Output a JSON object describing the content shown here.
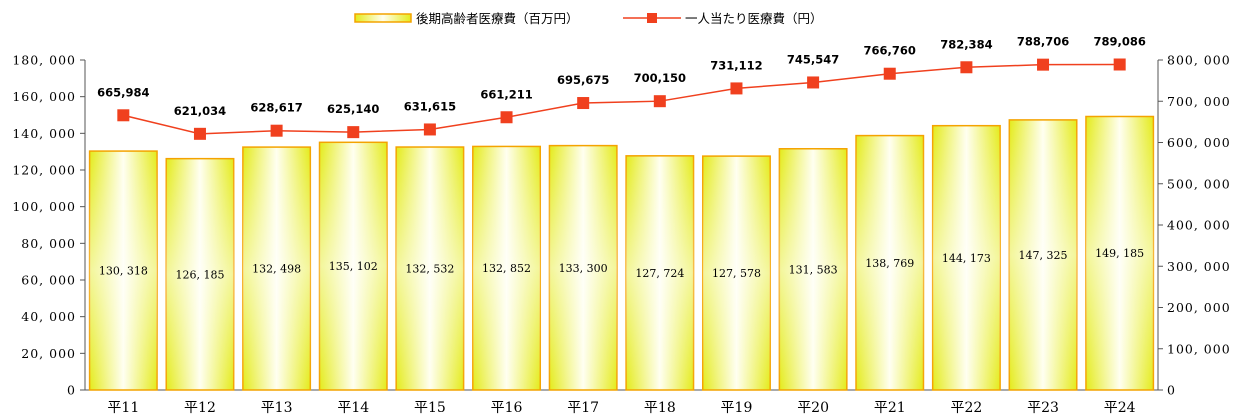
{
  "chart_data": {
    "type": "bar",
    "categories": [
      "平11",
      "平12",
      "平13",
      "平14",
      "平15",
      "平16",
      "平17",
      "平18",
      "平19",
      "平20",
      "平21",
      "平22",
      "平23",
      "平24"
    ],
    "series": [
      {
        "name": "後期高齢者医療費（百万円）",
        "type": "bar",
        "axis": "left",
        "values": [
          130318,
          126185,
          132498,
          135102,
          132532,
          132852,
          133300,
          127724,
          127578,
          131583,
          138769,
          144173,
          147325,
          149185
        ],
        "labels": [
          "130, 318",
          "126, 185",
          "132, 498",
          "135, 102",
          "132, 532",
          "132, 852",
          "133, 300",
          "127, 724",
          "127, 578",
          "131, 583",
          "138, 769",
          "144, 173",
          "147, 325",
          "149, 185"
        ]
      },
      {
        "name": "一人当たり医療費（円）",
        "type": "line",
        "axis": "right",
        "values": [
          665984,
          621034,
          628617,
          625140,
          631615,
          661211,
          695675,
          700150,
          731112,
          745547,
          766760,
          782384,
          788706,
          789086
        ],
        "labels": [
          "665,984",
          "621,034",
          "628,617",
          "625,140",
          "631,615",
          "661,211",
          "695,675",
          "700,150",
          "731,112",
          "745,547",
          "766,760",
          "782,384",
          "788,706",
          "789,086"
        ]
      }
    ],
    "left_axis": {
      "range": [
        0,
        180000
      ],
      "ticks": [
        0,
        20000,
        40000,
        60000,
        80000,
        100000,
        120000,
        140000,
        160000,
        180000
      ],
      "tick_labels": [
        "0",
        "20, 000",
        "40, 000",
        "60, 000",
        "80, 000",
        "100, 000",
        "120, 000",
        "140, 000",
        "160, 000",
        "180, 000"
      ]
    },
    "right_axis": {
      "range": [
        0,
        800000
      ],
      "ticks": [
        0,
        100000,
        200000,
        300000,
        400000,
        500000,
        600000,
        700000,
        800000
      ],
      "tick_labels": [
        "0",
        "100, 000",
        "200, 000",
        "300, 000",
        "400, 000",
        "500, 000",
        "600, 000",
        "700, 000",
        "800, 000"
      ]
    },
    "legend": {
      "position": "top",
      "bar_label": "後期高齢者医療費（百万円）",
      "line_label": "一人当たり医療費（円）"
    },
    "grid": false
  },
  "colors": {
    "bar_border": "#F4A300",
    "bar_fill_light": "#FFFFF0",
    "bar_fill_mid": "#F6F99A",
    "bar_fill_dark": "#E4EB1A",
    "line": "#F0401E",
    "axis": "#555555"
  }
}
